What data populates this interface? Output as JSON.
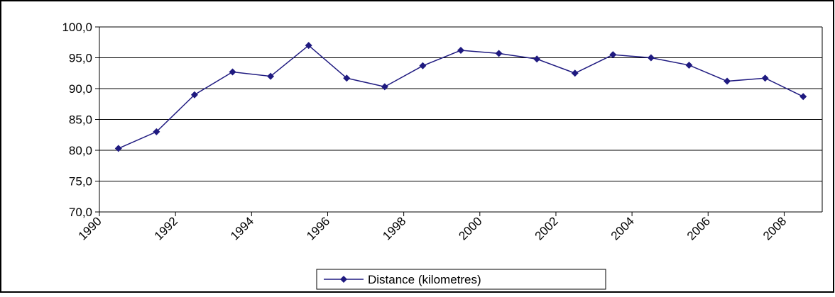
{
  "chart_data": {
    "type": "line",
    "x": [
      1990.5,
      1991.5,
      1992.5,
      1993.5,
      1994.5,
      1995.5,
      1996.5,
      1997.5,
      1998.5,
      1999.5,
      2000.5,
      2001.5,
      2002.5,
      2003.5,
      2004.5,
      2005.5,
      2006.5,
      2007.5,
      2008.5
    ],
    "series": [
      {
        "name": "Distance (kilometres)",
        "color": "#1f1a80",
        "values": [
          80.3,
          83.0,
          89.0,
          92.7,
          92.0,
          97.0,
          91.7,
          90.3,
          93.7,
          96.2,
          95.7,
          94.8,
          92.5,
          95.5,
          95.0,
          93.8,
          91.2,
          91.7,
          88.7
        ]
      }
    ],
    "xlim": [
      1990,
      2009
    ],
    "xticks": [
      1990,
      1992,
      1994,
      1996,
      1998,
      2000,
      2002,
      2004,
      2006,
      2008
    ],
    "ylim": [
      70,
      100
    ],
    "yticks": [
      {
        "value": 70,
        "label": "70,0"
      },
      {
        "value": 75,
        "label": "75,0"
      },
      {
        "value": 80,
        "label": "80,0"
      },
      {
        "value": 85,
        "label": "85,0"
      },
      {
        "value": 90,
        "label": "90,0"
      },
      {
        "value": 95,
        "label": "95,0"
      },
      {
        "value": 100,
        "label": "100,0"
      }
    ],
    "grid": true,
    "legend": "bottom"
  }
}
